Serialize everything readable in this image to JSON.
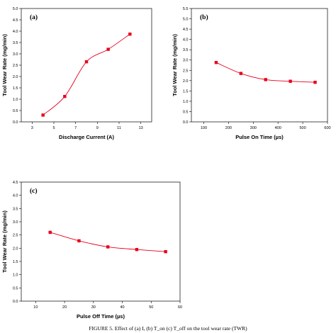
{
  "figure": {
    "caption": "FIGURE 5. Effect of (a) I, (b) T_on (c) T_off on the tool wear rate (TWR)"
  },
  "chart_data": [
    {
      "type": "line",
      "panel_label": "(a)",
      "xlabel": "Discharge Current (A)",
      "ylabel": "Tool Wear Rate (mg/min)",
      "xlim": [
        2,
        14
      ],
      "ylim": [
        0,
        5.0
      ],
      "xticks": [
        3,
        5,
        7,
        9,
        11,
        13
      ],
      "yticks": [
        0.0,
        0.5,
        1.0,
        1.5,
        2.0,
        2.5,
        3.0,
        3.5,
        4.0,
        4.5,
        5.0
      ],
      "grid": false,
      "marker_color": "#e8001c",
      "line_color": "#e8001c",
      "series": [
        {
          "x": [
            4,
            6,
            8,
            10,
            12
          ],
          "values": [
            0.3,
            1.12,
            2.65,
            3.2,
            3.87
          ]
        }
      ]
    },
    {
      "type": "line",
      "panel_label": "(b)",
      "xlabel": "Pulse On Time (µs)",
      "ylabel": "Tool Wear Rate (mg/min)",
      "xlim": [
        50,
        600
      ],
      "ylim": [
        0,
        5.5
      ],
      "xticks": [
        100,
        200,
        300,
        400,
        500,
        600
      ],
      "yticks": [
        0.0,
        0.5,
        1.0,
        1.5,
        2.0,
        2.5,
        3.0,
        3.5,
        4.0,
        4.5,
        5.0,
        5.5
      ],
      "grid": false,
      "marker_color": "#e8001c",
      "line_color": "#e8001c",
      "series": [
        {
          "x": [
            150,
            250,
            350,
            450,
            550
          ],
          "values": [
            2.88,
            2.35,
            2.05,
            1.97,
            1.92
          ]
        }
      ]
    },
    {
      "type": "line",
      "panel_label": "(c)",
      "xlabel": "Pulse Off Time (µs)",
      "ylabel": "Tool Wear Rate (mg/min)",
      "xlim": [
        5,
        60
      ],
      "ylim": [
        0,
        4.5
      ],
      "xticks": [
        10,
        20,
        30,
        40,
        50,
        60
      ],
      "yticks": [
        0.0,
        0.5,
        1.0,
        1.5,
        2.0,
        2.5,
        3.0,
        3.5,
        4.0,
        4.5
      ],
      "grid": false,
      "marker_color": "#e8001c",
      "line_color": "#e8001c",
      "series": [
        {
          "x": [
            15,
            25,
            35,
            45,
            55
          ],
          "values": [
            2.6,
            2.28,
            2.05,
            1.95,
            1.87
          ]
        }
      ]
    }
  ]
}
